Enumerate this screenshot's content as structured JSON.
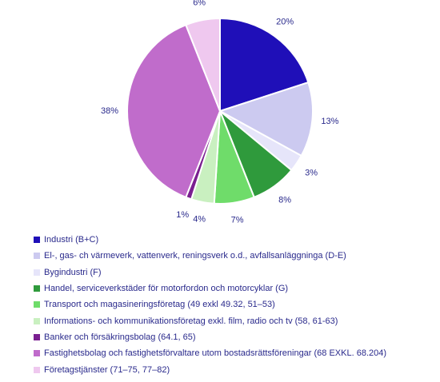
{
  "chart_data": {
    "type": "pie",
    "title": "",
    "slices": [
      {
        "name": "Industri (B+C)",
        "value": 20,
        "label": "20%",
        "color": "#1f0fb8"
      },
      {
        "name": "El-, gas- ch värmeverk,  vattenverk, reningsverk o.d., avfallsanläggninga (D-E)",
        "value": 13,
        "label": "13%",
        "color": "#cccaf0"
      },
      {
        "name": "Bygindustri (F)",
        "value": 3,
        "label": "3%",
        "color": "#e6e5fa"
      },
      {
        "name": "Handel, serviceverkstäder för motorfordon och motorcyklar (G)",
        "value": 8,
        "label": "8%",
        "color": "#2f9a3c"
      },
      {
        "name": "Transport och magasineringsföretag (49 exkl 49.32, 51–53)",
        "value": 7,
        "label": "7%",
        "color": "#6fdc6a"
      },
      {
        "name": "Informations- och kommunikationsföretag  exkl. film, radio och tv (58, 61-63)",
        "value": 4,
        "label": "4%",
        "color": "#c9f0c0"
      },
      {
        "name": "Banker och försäkringsbolag (64.1, 65)",
        "value": 1,
        "label": "1%",
        "color": "#7a1f90"
      },
      {
        "name": "Fastighetsbolag och fastighetsförvaltare utom bostadsrättsföreningar (68 EXKL. 68.204)",
        "value": 38,
        "label": "38%",
        "color": "#c06ccb"
      },
      {
        "name": "Företagstjänster (71–75, 77–82)",
        "value": 6,
        "label": "6%",
        "color": "#efc8ef"
      }
    ],
    "legend_position": "bottom"
  }
}
